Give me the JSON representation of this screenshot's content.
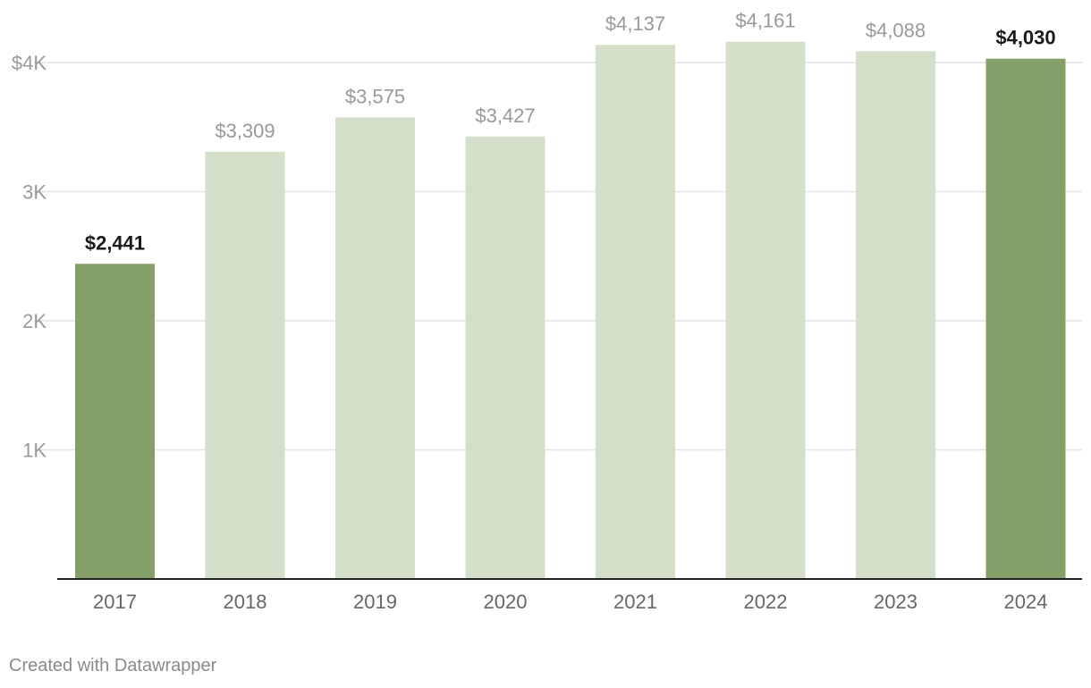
{
  "chart_data": {
    "type": "bar",
    "categories": [
      "2017",
      "2018",
      "2019",
      "2020",
      "2021",
      "2022",
      "2023",
      "2024"
    ],
    "values": [
      2441,
      3309,
      3575,
      3427,
      4137,
      4161,
      4088,
      4030
    ],
    "value_labels": [
      "$2,441",
      "$3,309",
      "$3,575",
      "$3,427",
      "$4,137",
      "$4,161",
      "$4,088",
      "$4,030"
    ],
    "highlighted": [
      true,
      false,
      false,
      false,
      false,
      false,
      false,
      true
    ],
    "ylim": [
      0,
      4000
    ],
    "yticks": [
      {
        "value": 1000,
        "label": "1K"
      },
      {
        "value": 2000,
        "label": "2K"
      },
      {
        "value": 3000,
        "label": "3K"
      },
      {
        "value": 4000,
        "label": "$4K"
      }
    ],
    "grid": true,
    "colors": {
      "highlight_bar": "#84a068",
      "default_bar": "#d4dfc9",
      "highlight_label": "#1a1a1a",
      "default_label": "#999999",
      "tick_label": "#9a9a9a",
      "grid": "#e4e4e4",
      "baseline": "#222222",
      "category_label": "#666666"
    }
  },
  "footer": {
    "credit": "Created with Datawrapper"
  }
}
